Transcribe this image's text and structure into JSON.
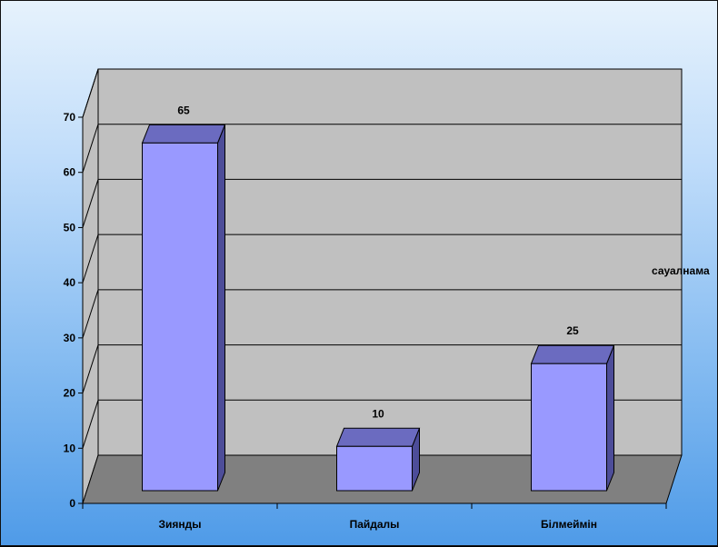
{
  "chart_data": {
    "type": "bar",
    "categories": [
      "Зиянды",
      "Пайдалы",
      "Білмеймін"
    ],
    "series": [
      {
        "name": "сауалнама",
        "values": [
          65,
          10,
          25
        ]
      }
    ],
    "data_labels": [
      "65",
      "10",
      "25"
    ],
    "ylim": [
      0,
      70
    ],
    "y_ticks": [
      0,
      10,
      20,
      30,
      40,
      50,
      60,
      70
    ],
    "grid": true,
    "legend_position": "right",
    "style": "3d-column",
    "colors": {
      "bar_front": "#9999ff",
      "bar_top": "#6b6bc0",
      "bar_side": "#4d4d99",
      "wall": "#c0c0c0",
      "floor": "#808080",
      "background_top": "#e6f2fc",
      "background_bottom": "#4f9be8"
    }
  }
}
